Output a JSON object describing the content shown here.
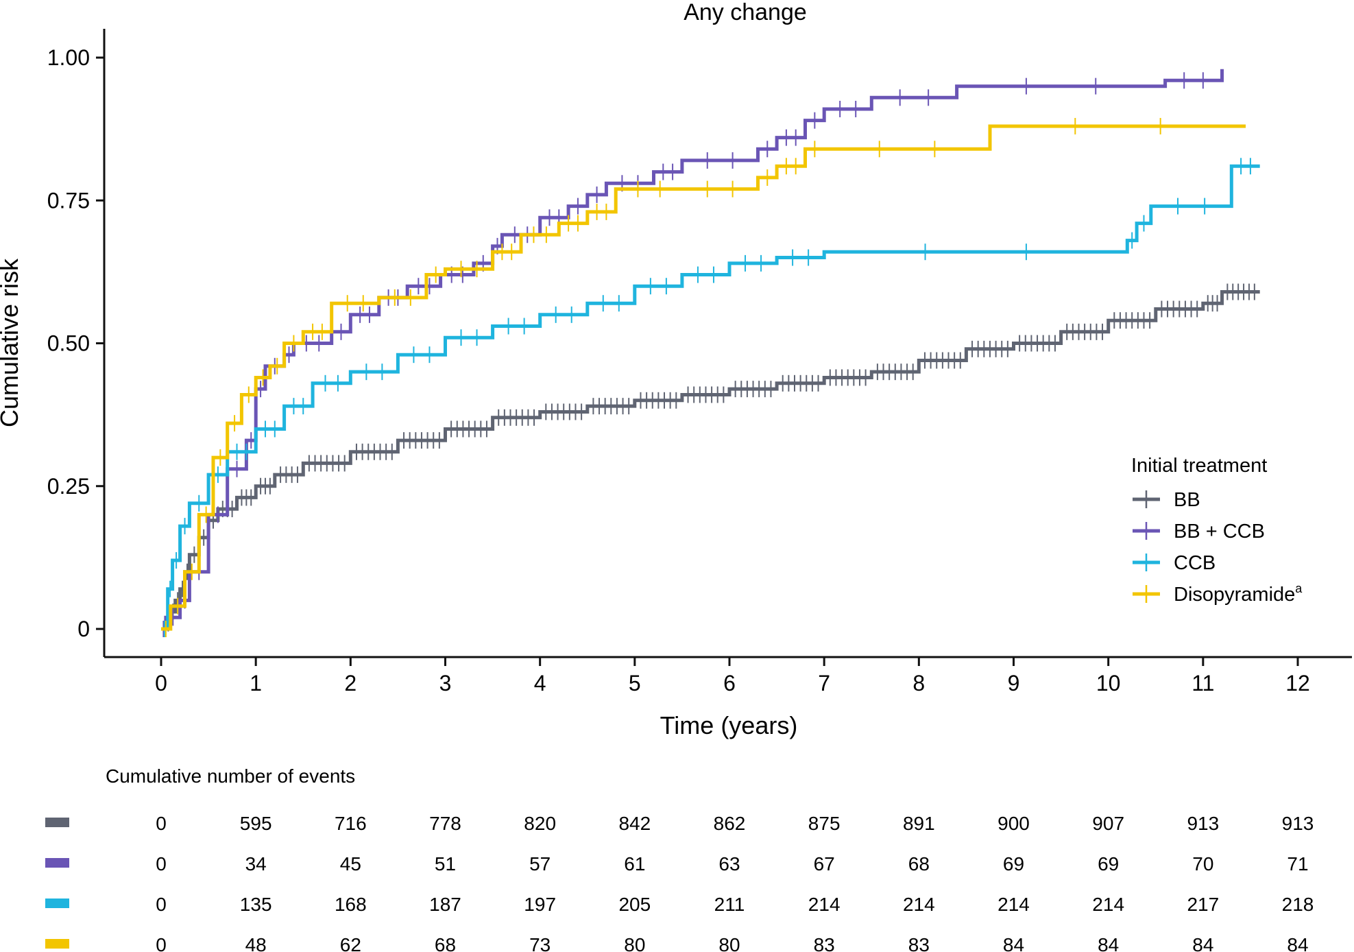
{
  "chart_data": {
    "type": "line",
    "title": "Any change",
    "xlabel": "Time (years)",
    "ylabel": "Cumulative risk",
    "xlim": [
      0,
      12
    ],
    "ylim": [
      0,
      1
    ],
    "x_ticks": [
      0,
      1,
      2,
      3,
      4,
      5,
      6,
      7,
      8,
      9,
      10,
      11,
      12
    ],
    "x_tick_labels": [
      "0",
      "1",
      "2",
      "3",
      "4",
      "5",
      "6",
      "7",
      "8",
      "9",
      "10",
      "11",
      "12"
    ],
    "y_ticks": [
      0,
      0.25,
      0.5,
      0.75,
      1.0
    ],
    "y_tick_labels": [
      "0",
      "0.25",
      "0.50",
      "0.75",
      "1.00"
    ],
    "grid": false,
    "step": true,
    "legend": {
      "title": "Initial treatment",
      "position": "right",
      "entries": [
        "BB",
        "BB + CCB",
        "CCB",
        "Disopyramide"
      ],
      "superscript_last": "a"
    },
    "series": [
      {
        "name": "BB",
        "color": "#5f6472",
        "x": [
          0,
          0.05,
          0.1,
          0.15,
          0.2,
          0.25,
          0.3,
          0.4,
          0.5,
          0.6,
          0.8,
          1.0,
          1.2,
          1.5,
          2.0,
          2.5,
          3.0,
          3.5,
          4.0,
          4.5,
          5.0,
          5.5,
          6.0,
          6.5,
          7.0,
          7.5,
          8.0,
          8.5,
          9.0,
          9.5,
          10.0,
          10.5,
          11.0,
          11.2,
          11.6
        ],
        "y": [
          0,
          0.01,
          0.03,
          0.05,
          0.07,
          0.1,
          0.13,
          0.16,
          0.19,
          0.21,
          0.23,
          0.25,
          0.27,
          0.29,
          0.31,
          0.33,
          0.35,
          0.37,
          0.38,
          0.39,
          0.4,
          0.41,
          0.42,
          0.43,
          0.44,
          0.45,
          0.47,
          0.49,
          0.5,
          0.52,
          0.54,
          0.56,
          0.57,
          0.59,
          0.59
        ]
      },
      {
        "name": "BB + CCB",
        "color": "#6a55b5",
        "x": [
          0,
          0.05,
          0.2,
          0.3,
          0.5,
          0.7,
          0.9,
          1.0,
          1.1,
          1.3,
          1.4,
          1.8,
          2.0,
          2.3,
          2.6,
          2.95,
          3.3,
          3.5,
          3.6,
          4.0,
          4.3,
          4.5,
          4.7,
          5.2,
          5.5,
          6.3,
          6.5,
          6.8,
          7.0,
          7.5,
          8.4,
          10.6,
          11.2
        ],
        "y": [
          0,
          0.02,
          0.05,
          0.1,
          0.2,
          0.28,
          0.33,
          0.42,
          0.46,
          0.48,
          0.5,
          0.52,
          0.55,
          0.58,
          0.6,
          0.62,
          0.64,
          0.67,
          0.69,
          0.72,
          0.74,
          0.76,
          0.78,
          0.8,
          0.82,
          0.84,
          0.86,
          0.89,
          0.91,
          0.93,
          0.95,
          0.96,
          0.98
        ]
      },
      {
        "name": "CCB",
        "color": "#1fb4de",
        "x": [
          0,
          0.07,
          0.12,
          0.2,
          0.3,
          0.5,
          0.7,
          1.0,
          1.3,
          1.6,
          2.0,
          2.5,
          3.0,
          3.5,
          4.0,
          4.5,
          5.0,
          5.5,
          6.0,
          6.5,
          7.0,
          10.2,
          10.3,
          10.45,
          11.3,
          11.6
        ],
        "y": [
          0,
          0.07,
          0.12,
          0.18,
          0.22,
          0.27,
          0.31,
          0.35,
          0.39,
          0.43,
          0.45,
          0.48,
          0.51,
          0.53,
          0.55,
          0.57,
          0.6,
          0.62,
          0.64,
          0.65,
          0.66,
          0.68,
          0.71,
          0.74,
          0.81,
          0.81
        ]
      },
      {
        "name": "Disopyramide",
        "color": "#f2c500",
        "x": [
          0,
          0.1,
          0.25,
          0.4,
          0.55,
          0.7,
          0.85,
          1.0,
          1.15,
          1.3,
          1.5,
          1.8,
          2.3,
          2.8,
          3.0,
          3.5,
          3.8,
          4.2,
          4.5,
          4.8,
          5.5,
          6.3,
          6.5,
          6.8,
          7.0,
          8.75,
          11.45
        ],
        "y": [
          0,
          0.04,
          0.1,
          0.2,
          0.3,
          0.36,
          0.41,
          0.44,
          0.46,
          0.5,
          0.52,
          0.57,
          0.58,
          0.62,
          0.63,
          0.66,
          0.69,
          0.71,
          0.73,
          0.77,
          0.77,
          0.79,
          0.81,
          0.84,
          0.84,
          0.88,
          0.88
        ]
      }
    ]
  },
  "risk_table": {
    "title": "Cumulative number of events",
    "rows": [
      {
        "color": "#5f6472",
        "values": [
          "0",
          "595",
          "716",
          "778",
          "820",
          "842",
          "862",
          "875",
          "891",
          "900",
          "907",
          "913",
          "913"
        ]
      },
      {
        "color": "#6a55b5",
        "values": [
          "0",
          "34",
          "45",
          "51",
          "57",
          "61",
          "63",
          "67",
          "68",
          "69",
          "69",
          "70",
          "71"
        ]
      },
      {
        "color": "#1fb4de",
        "values": [
          "0",
          "135",
          "168",
          "187",
          "197",
          "205",
          "211",
          "214",
          "214",
          "214",
          "214",
          "217",
          "218"
        ]
      },
      {
        "color": "#f2c500",
        "values": [
          "0",
          "48",
          "62",
          "68",
          "73",
          "80",
          "80",
          "83",
          "83",
          "84",
          "84",
          "84",
          "84"
        ]
      }
    ]
  }
}
